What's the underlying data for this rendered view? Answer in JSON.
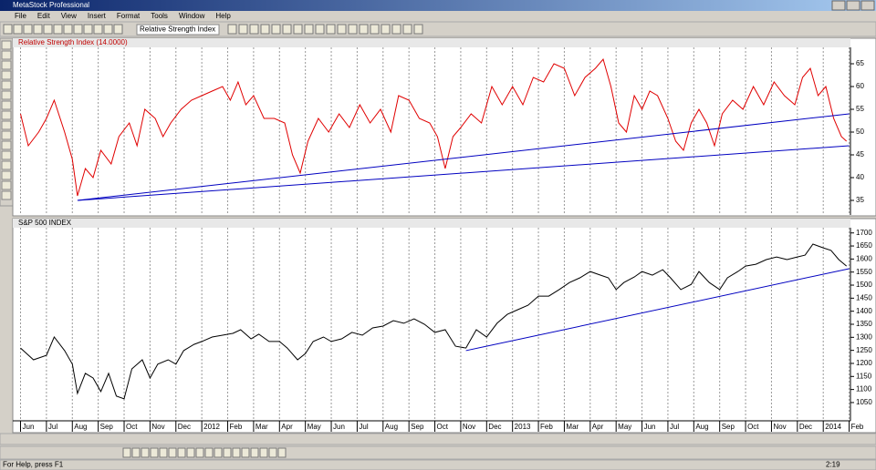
{
  "window_title": "MetaStock Professional",
  "menu": [
    "File",
    "Edit",
    "View",
    "Insert",
    "Format",
    "Tools",
    "Window",
    "Help"
  ],
  "toolbar_selector": "Relative Strength Index",
  "status_text": "For Help, press F1",
  "clock": "2:19",
  "chart_data": [
    {
      "type": "line",
      "title": "Relative Strength Index (14.0000)",
      "x": [
        0,
        0.3,
        0.7,
        1,
        1.3,
        1.7,
        2,
        2.2,
        2.5,
        2.8,
        3.1,
        3.5,
        3.8,
        4.2,
        4.5,
        4.8,
        5.2,
        5.5,
        5.8,
        6.2,
        6.6,
        7,
        7.4,
        7.8,
        8.1,
        8.4,
        8.7,
        9,
        9.4,
        9.8,
        10.2,
        10.5,
        10.8,
        11.1,
        11.5,
        11.9,
        12.3,
        12.7,
        13.1,
        13.5,
        13.9,
        14.3,
        14.6,
        15,
        15.4,
        15.8,
        16.1,
        16.4,
        16.7,
        17,
        17.4,
        17.8,
        18.2,
        18.6,
        19,
        19.4,
        19.8,
        20.2,
        20.6,
        21,
        21.4,
        21.8,
        22.2,
        22.5,
        22.8,
        23.1,
        23.4,
        23.7,
        24,
        24.3,
        24.6,
        25,
        25.3,
        25.6,
        25.9,
        26.2,
        26.5,
        26.8,
        27.1,
        27.5,
        27.9,
        28.3,
        28.7,
        29.1,
        29.5,
        29.9,
        30.2,
        30.5,
        30.8,
        31.1,
        31.4,
        31.7,
        31.9
      ],
      "series": [
        {
          "color": "#e00000",
          "values": [
            54,
            47,
            50,
            53,
            57,
            50,
            44,
            36,
            42,
            40,
            46,
            43,
            49,
            52,
            47,
            55,
            53,
            49,
            52,
            55,
            57,
            58,
            59,
            60,
            57,
            61,
            56,
            58,
            53,
            53,
            52,
            45,
            41,
            48,
            53,
            50,
            54,
            51,
            56,
            52,
            55,
            50,
            58,
            57,
            53,
            52,
            49,
            42,
            49,
            51,
            54,
            52,
            60,
            56,
            60,
            56,
            62,
            61,
            65,
            64,
            58,
            62,
            64,
            66,
            60,
            52,
            50,
            58,
            55,
            59,
            58,
            53,
            48,
            46,
            52,
            55,
            52,
            47,
            54,
            57,
            55,
            60,
            56,
            61,
            58,
            56,
            62,
            64,
            58,
            60,
            53,
            49,
            48
          ]
        }
      ],
      "trendlines": [
        {
          "color": "#0000c0",
          "x": [
            2.2,
            32
          ],
          "values": [
            35,
            47
          ]
        },
        {
          "color": "#0000c0",
          "x": [
            2.2,
            32
          ],
          "values": [
            35,
            54
          ]
        }
      ],
      "xlim": [
        -0.3,
        32.05
      ],
      "ylim": [
        31.8,
        68.6
      ],
      "yticks": [
        35,
        40,
        45,
        50,
        55,
        60,
        65
      ],
      "grid": true
    },
    {
      "type": "line",
      "title": "S&P 500 INDEX",
      "x": [
        0,
        0.5,
        1,
        1.3,
        1.7,
        2,
        2.2,
        2.5,
        2.8,
        3.1,
        3.4,
        3.7,
        4,
        4.3,
        4.7,
        5,
        5.3,
        5.7,
        6,
        6.3,
        6.7,
        7,
        7.4,
        7.8,
        8.2,
        8.5,
        8.9,
        9.2,
        9.6,
        10,
        10.3,
        10.7,
        11,
        11.3,
        11.7,
        12,
        12.4,
        12.8,
        13.2,
        13.6,
        14,
        14.4,
        14.8,
        15.2,
        15.6,
        16,
        16.4,
        16.8,
        17.2,
        17.6,
        18,
        18.4,
        18.8,
        19.2,
        19.6,
        20,
        20.4,
        20.8,
        21.2,
        21.6,
        22,
        22.4,
        22.7,
        23,
        23.3,
        23.7,
        24,
        24.4,
        24.8,
        25.1,
        25.5,
        25.9,
        26.2,
        26.6,
        27,
        27.3,
        27.7,
        28,
        28.4,
        28.8,
        29.2,
        29.6,
        30,
        30.3,
        30.6,
        31,
        31.3,
        31.6,
        31.9
      ],
      "series": [
        {
          "color": "#000000",
          "values": [
            1259,
            1214,
            1231,
            1301,
            1249,
            1197,
            1085,
            1162,
            1144,
            1092,
            1162,
            1075,
            1064,
            1179,
            1214,
            1144,
            1197,
            1214,
            1197,
            1249,
            1273,
            1284,
            1301,
            1308,
            1315,
            1329,
            1294,
            1312,
            1284,
            1284,
            1259,
            1214,
            1238,
            1284,
            1301,
            1284,
            1294,
            1319,
            1308,
            1336,
            1343,
            1364,
            1354,
            1371,
            1350,
            1319,
            1329,
            1266,
            1259,
            1329,
            1301,
            1354,
            1388,
            1406,
            1423,
            1458,
            1458,
            1483,
            1510,
            1528,
            1552,
            1538,
            1528,
            1483,
            1510,
            1531,
            1552,
            1538,
            1559,
            1528,
            1483,
            1503,
            1552,
            1510,
            1483,
            1528,
            1552,
            1573,
            1580,
            1598,
            1608,
            1598,
            1608,
            1615,
            1657,
            1643,
            1633,
            1598,
            1573
          ]
        }
      ],
      "trendlines": [
        {
          "color": "#0000c0",
          "x": [
            17.2,
            32
          ],
          "values": [
            1249,
            1563
          ]
        }
      ],
      "xlim": [
        -0.3,
        32.05
      ],
      "ylim": [
        980,
        1720
      ],
      "yticks": [
        1050,
        1100,
        1150,
        1200,
        1250,
        1300,
        1350,
        1400,
        1450,
        1500,
        1550,
        1600,
        1650,
        1700
      ],
      "xticks": [
        {
          "value": 0,
          "label": "Jun"
        },
        {
          "value": 1,
          "label": "Jul"
        },
        {
          "value": 2,
          "label": "Aug"
        },
        {
          "value": 3,
          "label": "Sep"
        },
        {
          "value": 4,
          "label": "Oct"
        },
        {
          "value": 5,
          "label": "Nov"
        },
        {
          "value": 6,
          "label": "Dec"
        },
        {
          "value": 7,
          "label": "2012"
        },
        {
          "value": 8,
          "label": "Feb"
        },
        {
          "value": 9,
          "label": "Mar"
        },
        {
          "value": 10,
          "label": "Apr"
        },
        {
          "value": 11,
          "label": "May"
        },
        {
          "value": 12,
          "label": "Jun"
        },
        {
          "value": 13,
          "label": "Jul"
        },
        {
          "value": 14,
          "label": "Aug"
        },
        {
          "value": 15,
          "label": "Sep"
        },
        {
          "value": 16,
          "label": "Oct"
        },
        {
          "value": 17,
          "label": "Nov"
        },
        {
          "value": 18,
          "label": "Dec"
        },
        {
          "value": 19,
          "label": "2013"
        },
        {
          "value": 20,
          "label": "Feb"
        },
        {
          "value": 21,
          "label": "Mar"
        },
        {
          "value": 22,
          "label": "Apr"
        },
        {
          "value": 23,
          "label": "May"
        },
        {
          "value": 24,
          "label": "Jun"
        },
        {
          "value": 25,
          "label": "Jul"
        },
        {
          "value": 26,
          "label": "Aug"
        },
        {
          "value": 27,
          "label": "Sep"
        },
        {
          "value": 28,
          "label": "Oct"
        },
        {
          "value": 29,
          "label": "Nov"
        },
        {
          "value": 30,
          "label": "Dec"
        },
        {
          "value": 31,
          "label": "2014"
        },
        {
          "value": 32,
          "label": "Feb"
        }
      ],
      "grid": true
    }
  ]
}
